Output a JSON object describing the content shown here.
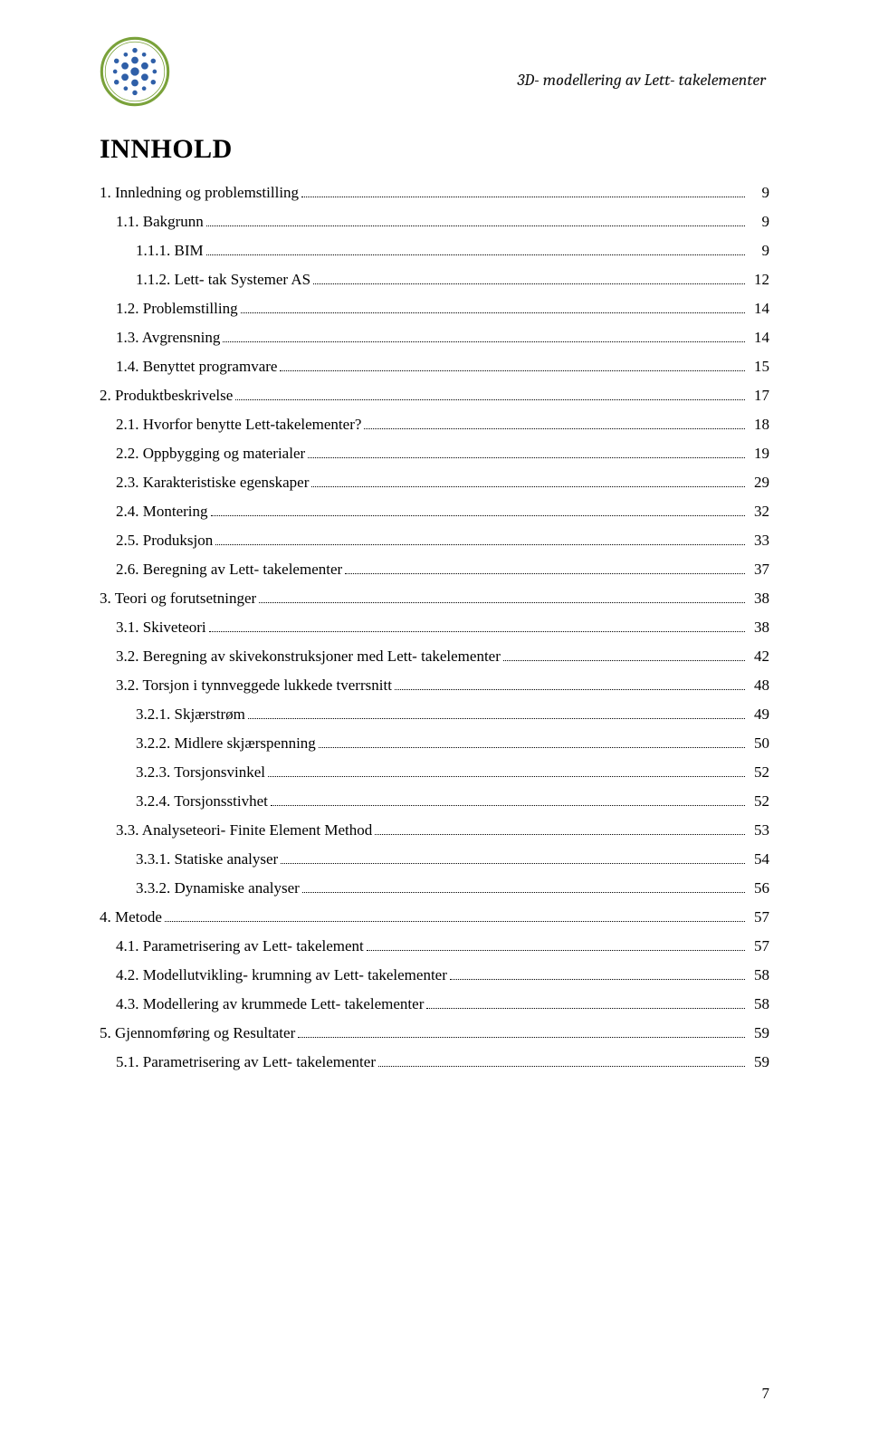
{
  "header": {
    "running_title": "3D- modellering av Lett- takelementer"
  },
  "logo": {
    "ring_color": "#7aa23a",
    "dot_color": "#2f5fa8",
    "bg_color": "#ffffff"
  },
  "title": "INNHOLD",
  "colors": {
    "text": "#000000",
    "background": "#ffffff",
    "leader": "#000000"
  },
  "typography": {
    "body_family": "Times New Roman",
    "header_family": "Cambria",
    "body_size_pt": 12,
    "title_size_pt": 22,
    "running_head_size_pt": 13,
    "running_head_style": "italic"
  },
  "toc": [
    {
      "level": 1,
      "label": "1. Innledning og problemstilling",
      "page": "9"
    },
    {
      "level": 2,
      "label": "1.1. Bakgrunn",
      "page": "9"
    },
    {
      "level": 3,
      "label": "1.1.1. BIM",
      "page": "9"
    },
    {
      "level": 3,
      "label": "1.1.2. Lett- tak Systemer AS",
      "page": "12"
    },
    {
      "level": 2,
      "label": "1.2. Problemstilling",
      "page": "14"
    },
    {
      "level": 2,
      "label": "1.3. Avgrensning",
      "page": "14"
    },
    {
      "level": 2,
      "label": "1.4. Benyttet programvare",
      "page": "15"
    },
    {
      "level": 1,
      "label": "2. Produktbeskrivelse",
      "page": "17"
    },
    {
      "level": 2,
      "label": "2.1. Hvorfor benytte Lett-takelementer?",
      "page": "18"
    },
    {
      "level": 2,
      "label": "2.2. Oppbygging og materialer",
      "page": "19"
    },
    {
      "level": 2,
      "label": "2.3. Karakteristiske egenskaper",
      "page": "29"
    },
    {
      "level": 2,
      "label": "2.4. Montering",
      "page": "32"
    },
    {
      "level": 2,
      "label": "2.5. Produksjon",
      "page": "33"
    },
    {
      "level": 2,
      "label": "2.6. Beregning av Lett- takelementer",
      "page": "37"
    },
    {
      "level": 1,
      "label": "3. Teori og forutsetninger",
      "page": "38"
    },
    {
      "level": 2,
      "label": "3.1. Skiveteori",
      "page": "38"
    },
    {
      "level": 2,
      "label": "3.2. Beregning av skivekonstruksjoner med Lett- takelementer",
      "page": "42"
    },
    {
      "level": 2,
      "label": "3.2. Torsjon i tynnveggede lukkede tverrsnitt",
      "page": "48"
    },
    {
      "level": 3,
      "label": "3.2.1. Skjærstrøm",
      "page": "49"
    },
    {
      "level": 3,
      "label": "3.2.2. Midlere skjærspenning",
      "page": "50"
    },
    {
      "level": 3,
      "label": "3.2.3. Torsjonsvinkel",
      "page": "52"
    },
    {
      "level": 3,
      "label": "3.2.4. Torsjonsstivhet",
      "page": "52"
    },
    {
      "level": 2,
      "label": "3.3. Analyseteori- Finite Element Method",
      "page": "53"
    },
    {
      "level": 3,
      "label": "3.3.1. Statiske analyser",
      "page": "54"
    },
    {
      "level": 3,
      "label": "3.3.2. Dynamiske analyser",
      "page": "56"
    },
    {
      "level": 1,
      "label": "4. Metode",
      "page": "57"
    },
    {
      "level": 2,
      "label": "4.1. Parametrisering av Lett- takelement",
      "page": "57"
    },
    {
      "level": 2,
      "label": "4.2. Modellutvikling- krumning av Lett- takelementer",
      "page": "58"
    },
    {
      "level": 2,
      "label": "4.3. Modellering av krummede Lett- takelementer",
      "page": "58"
    },
    {
      "level": 1,
      "label": "5. Gjennomføring og Resultater",
      "page": "59"
    },
    {
      "level": 2,
      "label": "5.1. Parametrisering av Lett- takelementer",
      "page": "59"
    }
  ],
  "page_number": "7"
}
